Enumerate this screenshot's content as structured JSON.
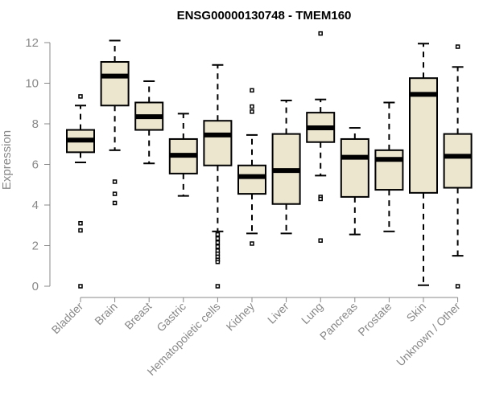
{
  "chart_data": {
    "type": "boxplot",
    "title": "ENSG00000130748 - TMEM160",
    "xlabel": "",
    "ylabel": "Expression",
    "ylim": [
      0,
      12
    ],
    "yticks": [
      0,
      2,
      4,
      6,
      8,
      10,
      12
    ],
    "box_fill": "#ede6cf",
    "line_color": "#000000",
    "categories": [
      "Bladder",
      "Brain",
      "Breast",
      "Gastric",
      "Hematopoietic cells",
      "Kidney",
      "Liver",
      "Lung",
      "Pancreas",
      "Prostate",
      "Skin",
      "Unknown / Other"
    ],
    "boxes": [
      {
        "category": "Bladder",
        "whisker_low": 6.1,
        "q1": 6.6,
        "median": 7.2,
        "q3": 7.7,
        "whisker_high": 8.9,
        "outliers": [
          9.35,
          3.1,
          2.75,
          0.0
        ]
      },
      {
        "category": "Brain",
        "whisker_low": 6.7,
        "q1": 8.9,
        "median": 10.35,
        "q3": 11.05,
        "whisker_high": 12.1,
        "outliers": [
          5.15,
          4.55,
          4.1
        ]
      },
      {
        "category": "Breast",
        "whisker_low": 6.05,
        "q1": 7.7,
        "median": 8.35,
        "q3": 9.05,
        "whisker_high": 10.1,
        "outliers": []
      },
      {
        "category": "Gastric",
        "whisker_low": 4.45,
        "q1": 5.55,
        "median": 6.45,
        "q3": 7.25,
        "whisker_high": 8.5,
        "outliers": []
      },
      {
        "category": "Hematopoietic cells",
        "whisker_low": 2.7,
        "q1": 5.95,
        "median": 7.45,
        "q3": 8.15,
        "whisker_high": 10.9,
        "outliers": [
          2.55,
          2.35,
          2.15,
          1.95,
          1.75,
          1.6,
          1.45,
          1.3,
          1.2,
          0.0
        ]
      },
      {
        "category": "Kidney",
        "whisker_low": 2.6,
        "q1": 4.55,
        "median": 5.4,
        "q3": 5.95,
        "whisker_high": 7.45,
        "outliers": [
          9.65,
          8.85,
          8.6,
          2.1
        ]
      },
      {
        "category": "Liver",
        "whisker_low": 2.6,
        "q1": 4.05,
        "median": 5.7,
        "q3": 7.5,
        "whisker_high": 9.15,
        "outliers": []
      },
      {
        "category": "Lung",
        "whisker_low": 5.45,
        "q1": 7.1,
        "median": 7.8,
        "q3": 8.55,
        "whisker_high": 9.2,
        "outliers": [
          12.45,
          4.4,
          4.3,
          2.25
        ]
      },
      {
        "category": "Pancreas",
        "whisker_low": 2.55,
        "q1": 4.4,
        "median": 6.35,
        "q3": 7.25,
        "whisker_high": 7.8,
        "outliers": []
      },
      {
        "category": "Prostate",
        "whisker_low": 2.7,
        "q1": 4.75,
        "median": 6.25,
        "q3": 6.7,
        "whisker_high": 9.05,
        "outliers": []
      },
      {
        "category": "Skin",
        "whisker_low": 0.05,
        "q1": 4.6,
        "median": 9.45,
        "q3": 10.25,
        "whisker_high": 11.95,
        "outliers": []
      },
      {
        "category": "Unknown / Other",
        "whisker_low": 1.5,
        "q1": 4.85,
        "median": 6.4,
        "q3": 7.5,
        "whisker_high": 10.8,
        "outliers": [
          11.8,
          0.0
        ]
      }
    ]
  }
}
